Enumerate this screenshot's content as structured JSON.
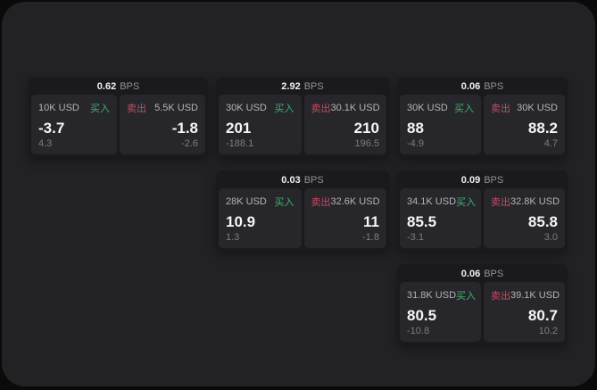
{
  "labels": {
    "bps_unit": "BPS",
    "buy": "买入",
    "sell": "卖出"
  },
  "colors": {
    "page_bg": "#0a0a0b",
    "panel_bg": "#222225",
    "card_bg": "#1a1a1d",
    "cell_bg": "#27272b",
    "buy_green": "#3eb26d",
    "sell_red": "#c64a63"
  },
  "cards": [
    {
      "bps": "0.62",
      "buy": {
        "notional": "10K USD",
        "price": "-3.7",
        "delta": "4.3"
      },
      "sell": {
        "notional": "5.5K USD",
        "price": "-1.8",
        "delta": "-2.6"
      }
    },
    {
      "bps": "2.92",
      "buy": {
        "notional": "30K USD",
        "price": "201",
        "delta": "-188.1"
      },
      "sell": {
        "notional": "30.1K USD",
        "price": "210",
        "delta": "196.5"
      }
    },
    {
      "bps": "0.06",
      "buy": {
        "notional": "30K USD",
        "price": "88",
        "delta": "-4.9"
      },
      "sell": {
        "notional": "30K USD",
        "price": "88.2",
        "delta": "4.7"
      }
    },
    {
      "bps": "0.03",
      "buy": {
        "notional": "28K USD",
        "price": "10.9",
        "delta": "1.3"
      },
      "sell": {
        "notional": "32.6K USD",
        "price": "11",
        "delta": "-1.8"
      }
    },
    {
      "bps": "0.09",
      "buy": {
        "notional": "34.1K USD",
        "price": "85.5",
        "delta": "-3.1"
      },
      "sell": {
        "notional": "32.8K USD",
        "price": "85.8",
        "delta": "3.0"
      }
    },
    {
      "bps": "0.06",
      "buy": {
        "notional": "31.8K USD",
        "price": "80.5",
        "delta": "-10.8"
      },
      "sell": {
        "notional": "39.1K USD",
        "price": "80.7",
        "delta": "10.2"
      }
    }
  ]
}
